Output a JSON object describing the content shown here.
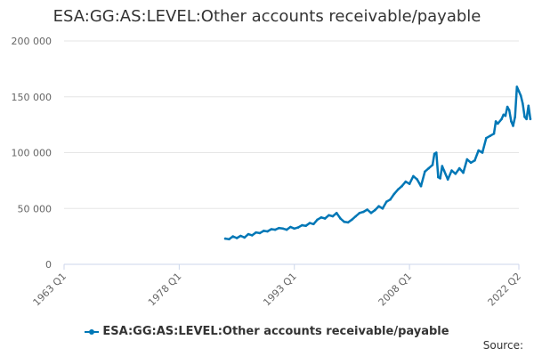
{
  "title": "ESA:GG:AS:LEVEL:Other accounts receivable/payable",
  "legend": {
    "label": "ESA:GG:AS:LEVEL:Other accounts receivable/payable"
  },
  "source_label": "Source:",
  "colors": {
    "series": "#0077b6",
    "grid": "#e6e6e6",
    "axis": "#ccd6eb"
  },
  "chart_data": {
    "type": "line",
    "title": "ESA:GG:AS:LEVEL:Other accounts receivable/payable",
    "xlabel": "",
    "ylabel": "",
    "x_ticks": [
      "1963 Q1",
      "1978 Q1",
      "1993 Q1",
      "2008 Q1",
      "2022 Q2"
    ],
    "y_ticks": [
      "0",
      "50 000",
      "100 000",
      "150 000",
      "200 000"
    ],
    "xlim": [
      "1963 Q1",
      "2022 Q2"
    ],
    "ylim": [
      0,
      200000
    ],
    "grid": true,
    "legend_position": "bottom",
    "series": [
      {
        "name": "ESA:GG:AS:LEVEL:Other accounts receivable/payable",
        "points": [
          [
            "1984 Q1",
            23000
          ],
          [
            "1984 Q3",
            22500
          ],
          [
            "1985 Q1",
            25000
          ],
          [
            "1985 Q3",
            23500
          ],
          [
            "1986 Q1",
            25500
          ],
          [
            "1986 Q3",
            24000
          ],
          [
            "1987 Q1",
            27000
          ],
          [
            "1987 Q3",
            26000
          ],
          [
            "1988 Q1",
            28500
          ],
          [
            "1988 Q3",
            28000
          ],
          [
            "1989 Q1",
            30000
          ],
          [
            "1989 Q3",
            29500
          ],
          [
            "1990 Q1",
            31500
          ],
          [
            "1990 Q3",
            31000
          ],
          [
            "1991 Q1",
            32500
          ],
          [
            "1991 Q3",
            32000
          ],
          [
            "1992 Q1",
            31000
          ],
          [
            "1992 Q3",
            33500
          ],
          [
            "1993 Q1",
            32000
          ],
          [
            "1993 Q3",
            33000
          ],
          [
            "1994 Q1",
            35000
          ],
          [
            "1994 Q3",
            34500
          ],
          [
            "1995 Q1",
            37000
          ],
          [
            "1995 Q3",
            36000
          ],
          [
            "1996 Q1",
            40000
          ],
          [
            "1996 Q3",
            42000
          ],
          [
            "1997 Q1",
            41000
          ],
          [
            "1997 Q3",
            44000
          ],
          [
            "1998 Q1",
            43000
          ],
          [
            "1998 Q3",
            46000
          ],
          [
            "1999 Q1",
            41000
          ],
          [
            "1999 Q3",
            38000
          ],
          [
            "2000 Q1",
            37500
          ],
          [
            "2000 Q3",
            40000
          ],
          [
            "2001 Q1",
            43000
          ],
          [
            "2001 Q3",
            46000
          ],
          [
            "2002 Q1",
            47000
          ],
          [
            "2002 Q3",
            49000
          ],
          [
            "2003 Q1",
            46000
          ],
          [
            "2003 Q3",
            48500
          ],
          [
            "2004 Q1",
            52000
          ],
          [
            "2004 Q3",
            50000
          ],
          [
            "2005 Q1",
            56000
          ],
          [
            "2005 Q3",
            58000
          ],
          [
            "2006 Q1",
            63000
          ],
          [
            "2006 Q3",
            67000
          ],
          [
            "2007 Q1",
            70000
          ],
          [
            "2007 Q3",
            74000
          ],
          [
            "2008 Q1",
            72000
          ],
          [
            "2008 Q3",
            79000
          ],
          [
            "2009 Q1",
            76000
          ],
          [
            "2009 Q3",
            70000
          ],
          [
            "2010 Q1",
            83000
          ],
          [
            "2010 Q3",
            86000
          ],
          [
            "2011 Q1",
            89000
          ],
          [
            "2011 Q2",
            99000
          ],
          [
            "2011 Q3",
            100000
          ],
          [
            "2011 Q4",
            78000
          ],
          [
            "2012 Q1",
            77000
          ],
          [
            "2012 Q2",
            88000
          ],
          [
            "2012 Q3",
            84000
          ],
          [
            "2013 Q1",
            76000
          ],
          [
            "2013 Q3",
            84000
          ],
          [
            "2014 Q1",
            81000
          ],
          [
            "2014 Q3",
            86000
          ],
          [
            "2015 Q1",
            82000
          ],
          [
            "2015 Q3",
            94000
          ],
          [
            "2016 Q1",
            91000
          ],
          [
            "2016 Q3",
            93000
          ],
          [
            "2017 Q1",
            102000
          ],
          [
            "2017 Q3",
            100000
          ],
          [
            "2018 Q1",
            113000
          ],
          [
            "2018 Q3",
            115000
          ],
          [
            "2019 Q1",
            117000
          ],
          [
            "2019 Q2",
            128000
          ],
          [
            "2019 Q3",
            126000
          ],
          [
            "2020 Q1",
            130000
          ],
          [
            "2020 Q2",
            134000
          ],
          [
            "2020 Q3",
            133000
          ],
          [
            "2020 Q4",
            141000
          ],
          [
            "2021 Q1",
            138000
          ],
          [
            "2021 Q2",
            128000
          ],
          [
            "2021 Q3",
            124000
          ],
          [
            "2021 Q4",
            132000
          ],
          [
            "2022 Q1",
            159000
          ],
          [
            "2022 Q2",
            155000
          ],
          [
            "2022 Q3",
            151000
          ],
          [
            "2022 Q4",
            144000
          ],
          [
            "2023 Q1",
            132000
          ],
          [
            "2023 Q2",
            130000
          ],
          [
            "2023 Q3",
            142000
          ],
          [
            "2023 Q4",
            130000
          ]
        ]
      }
    ]
  }
}
